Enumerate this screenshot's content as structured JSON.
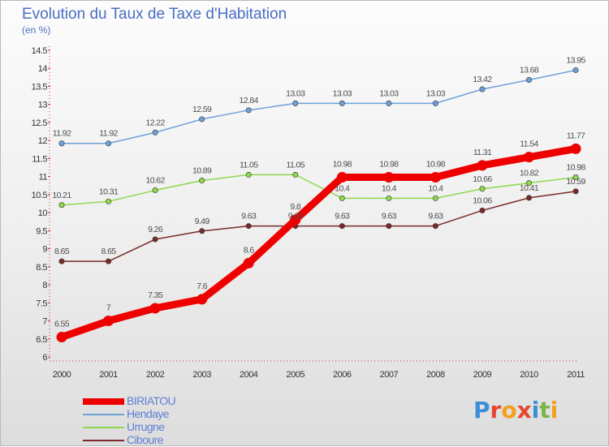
{
  "title": "Evolution du Taux de Taxe d'Habitation",
  "unit_label": "(en %)",
  "logo": {
    "letters": [
      "P",
      "r",
      "o",
      "x",
      "i",
      "t",
      "i"
    ],
    "colors": [
      "#3b8fd6",
      "#e6462e",
      "#f2a01c",
      "#e6462e",
      "#3b8fd6",
      "#78b64a",
      "#f2a01c"
    ]
  },
  "chart_data": {
    "type": "line",
    "x": [
      "2000",
      "2001",
      "2002",
      "2003",
      "2004",
      "2005",
      "2006",
      "2007",
      "2008",
      "2009",
      "2010",
      "2011"
    ],
    "ylim": [
      6,
      14.5
    ],
    "yticks": [
      "6",
      "6.5",
      "7",
      "7.5",
      "8",
      "8.5",
      "9",
      "9.5",
      "10",
      "10.5",
      "11",
      "11.5",
      "12",
      "12.5",
      "13",
      "13.5",
      "14",
      "14.5"
    ],
    "grid": false,
    "legend_position": "bottom-left",
    "series": [
      {
        "name": "BIRIATOU",
        "color": "#ee0000",
        "emphasis": true,
        "values": [
          6.55,
          7,
          7.35,
          7.6,
          8.6,
          9.8,
          10.98,
          10.98,
          10.98,
          11.31,
          11.54,
          11.77
        ],
        "labels": [
          "6.55",
          "7",
          "7.35",
          "7.6",
          "8.6",
          "9.8",
          "10.98",
          "10.98",
          "10.98",
          "11.31",
          "11.54",
          "11.77"
        ]
      },
      {
        "name": "Hendaye",
        "color": "#6fa1d9",
        "values": [
          11.92,
          11.92,
          12.22,
          12.59,
          12.84,
          13.03,
          13.03,
          13.03,
          13.03,
          13.42,
          13.68,
          13.95
        ],
        "labels": [
          "11.92",
          "11.92",
          "12.22",
          "12.59",
          "12.84",
          "13.03",
          "13.03",
          "13.03",
          "13.03",
          "13.42",
          "13.68",
          "13.95"
        ]
      },
      {
        "name": "Urrugne",
        "color": "#8fd84e",
        "values": [
          10.21,
          10.31,
          10.62,
          10.89,
          11.05,
          11.05,
          10.4,
          10.4,
          10.4,
          10.66,
          10.82,
          10.98
        ],
        "labels": [
          "10.21",
          "10.31",
          "10.62",
          "10.89",
          "11.05",
          "11.05",
          "10.4",
          "10.4",
          "10.4",
          "10.66",
          "10.82",
          "10.98"
        ]
      },
      {
        "name": "Ciboure",
        "color": "#7a2a2a",
        "values": [
          8.65,
          8.65,
          9.26,
          9.49,
          9.63,
          9.63,
          9.63,
          9.63,
          9.63,
          10.06,
          10.41,
          10.59
        ],
        "labels": [
          "8.65",
          "8.65",
          "9.26",
          "9.49",
          "9.63",
          "9.63",
          "9.63",
          "9.63",
          "9.63",
          "10.06",
          "10.41",
          "10.59"
        ]
      }
    ]
  }
}
